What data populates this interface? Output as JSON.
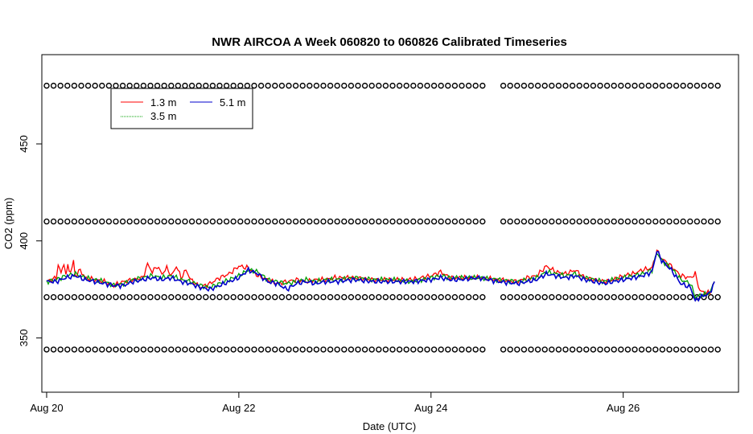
{
  "chart_data": {
    "type": "line",
    "title": "NWR AIRCOA A  Week 060820 to 060826  Calibrated Timeseries",
    "xlabel": "Date (UTC)",
    "ylabel": "CO2 (ppm)",
    "xlim": [
      -0.05,
      7.2
    ],
    "ylim": [
      322,
      496
    ],
    "xticks": [
      {
        "label": "Aug 20",
        "v": 0
      },
      {
        "label": "Aug 22",
        "v": 2
      },
      {
        "label": "Aug 24",
        "v": 4
      },
      {
        "label": "Aug 26",
        "v": 6
      }
    ],
    "yticks": [
      {
        "label": "350",
        "v": 350
      },
      {
        "label": "400",
        "v": 400
      },
      {
        "label": "450",
        "v": 450
      }
    ],
    "legend_position": "top-left",
    "series": [
      {
        "name": "1.3 m",
        "color": "#ff0000",
        "x": [
          0,
          0.1,
          0.12,
          0.15,
          0.18,
          0.2,
          0.22,
          0.25,
          0.28,
          0.3,
          0.35,
          0.4,
          0.5,
          0.6,
          0.7,
          0.8,
          0.9,
          1.0,
          1.05,
          1.1,
          1.15,
          1.2,
          1.25,
          1.3,
          1.35,
          1.4,
          1.45,
          1.5,
          1.55,
          1.6,
          1.7,
          1.8,
          1.9,
          2.0,
          2.1,
          2.2,
          2.3,
          2.4,
          2.5,
          2.6,
          2.7,
          2.8,
          2.9,
          3.0,
          3.2,
          3.4,
          3.6,
          3.8,
          4.0,
          4.1,
          4.2,
          4.3,
          4.5,
          4.7,
          4.9,
          5.0,
          5.1,
          5.2,
          5.3,
          5.4,
          5.5,
          5.6,
          5.7,
          5.8,
          5.9,
          6.0,
          6.1,
          6.2,
          6.3,
          6.35,
          6.4,
          6.5,
          6.6,
          6.7,
          6.75,
          6.8,
          6.9,
          6.95
        ],
        "y": [
          379,
          381,
          388,
          383,
          389,
          382,
          387,
          384,
          389,
          382,
          385,
          381,
          380,
          379,
          377,
          379,
          380,
          381,
          388,
          384,
          387,
          383,
          386,
          382,
          387,
          381,
          385,
          380,
          378,
          376,
          378,
          381,
          383,
          387,
          386,
          382,
          380,
          378,
          379,
          380,
          379,
          380,
          380,
          381,
          381,
          380,
          380,
          380,
          382,
          384,
          381,
          381,
          381,
          380,
          379,
          381,
          382,
          387,
          384,
          383,
          385,
          381,
          380,
          379,
          380,
          382,
          383,
          385,
          386,
          395,
          391,
          387,
          382,
          381,
          383,
          374,
          373,
          379
        ]
      },
      {
        "name": "3.5 m",
        "color": "#00a000",
        "x": [
          0,
          0.1,
          0.2,
          0.3,
          0.4,
          0.5,
          0.6,
          0.7,
          0.8,
          0.9,
          1.0,
          1.1,
          1.2,
          1.3,
          1.4,
          1.5,
          1.6,
          1.7,
          1.8,
          1.9,
          2.0,
          2.1,
          2.2,
          2.3,
          2.4,
          2.5,
          2.6,
          2.7,
          2.8,
          2.9,
          3.0,
          3.2,
          3.4,
          3.6,
          3.8,
          4.0,
          4.1,
          4.2,
          4.3,
          4.5,
          4.7,
          4.9,
          5.0,
          5.1,
          5.2,
          5.3,
          5.4,
          5.5,
          5.6,
          5.7,
          5.8,
          5.9,
          6.0,
          6.1,
          6.2,
          6.3,
          6.35,
          6.4,
          6.5,
          6.6,
          6.7,
          6.75,
          6.8,
          6.9,
          6.95
        ],
        "y": [
          379,
          380,
          382,
          383,
          381,
          380,
          379,
          377,
          378,
          380,
          381,
          382,
          381,
          382,
          380,
          379,
          377,
          376,
          378,
          380,
          382,
          385,
          384,
          380,
          379,
          378,
          379,
          380,
          379,
          380,
          380,
          381,
          380,
          380,
          379,
          381,
          382,
          381,
          381,
          381,
          380,
          379,
          380,
          381,
          384,
          383,
          382,
          383,
          381,
          380,
          379,
          380,
          381,
          382,
          383,
          385,
          394,
          390,
          386,
          380,
          378,
          371,
          372,
          373,
          379
        ]
      },
      {
        "name": "5.1 m",
        "color": "#0000cc",
        "x": [
          0,
          0.1,
          0.2,
          0.3,
          0.4,
          0.5,
          0.6,
          0.7,
          0.8,
          0.9,
          1.0,
          1.1,
          1.2,
          1.3,
          1.4,
          1.5,
          1.6,
          1.7,
          1.8,
          1.9,
          2.0,
          2.1,
          2.2,
          2.3,
          2.4,
          2.5,
          2.6,
          2.7,
          2.8,
          2.9,
          3.0,
          3.2,
          3.4,
          3.6,
          3.8,
          4.0,
          4.1,
          4.2,
          4.3,
          4.5,
          4.7,
          4.9,
          5.0,
          5.1,
          5.2,
          5.3,
          5.4,
          5.5,
          5.6,
          5.7,
          5.8,
          5.9,
          6.0,
          6.1,
          6.2,
          6.3,
          6.35,
          6.4,
          6.5,
          6.6,
          6.7,
          6.75,
          6.8,
          6.9,
          6.95
        ],
        "y": [
          379,
          379,
          381,
          382,
          380,
          379,
          378,
          377,
          377,
          379,
          380,
          381,
          380,
          381,
          379,
          378,
          376,
          375,
          377,
          379,
          381,
          385,
          383,
          379,
          378,
          375,
          378,
          379,
          378,
          379,
          379,
          380,
          379,
          379,
          379,
          380,
          381,
          380,
          380,
          381,
          379,
          378,
          379,
          380,
          383,
          382,
          381,
          382,
          380,
          379,
          378,
          379,
          380,
          381,
          382,
          384,
          395,
          390,
          385,
          378,
          376,
          369,
          371,
          373,
          379
        ]
      }
    ],
    "marker_rows": [
      {
        "y": 480,
        "gap": [
          4.6,
          4.75
        ]
      },
      {
        "y": 410,
        "gap": [
          4.6,
          4.75
        ]
      },
      {
        "y": 371,
        "gap": [
          4.6,
          4.75
        ]
      },
      {
        "y": 344,
        "gap": [
          4.6,
          4.75
        ]
      }
    ]
  }
}
